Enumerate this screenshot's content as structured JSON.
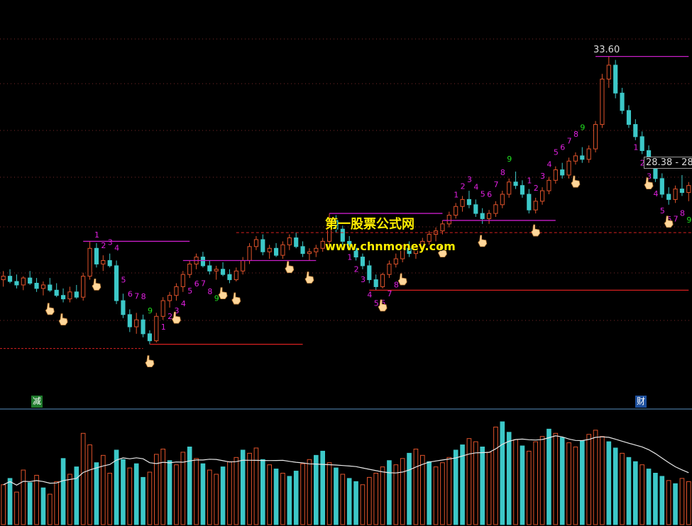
{
  "chart_data": {
    "type": "candlestick",
    "title": "",
    "xlabel": "",
    "ylabel": "",
    "price": {
      "max_label": "33.60",
      "range_label": "28.38 - 28",
      "ylim": [
        15.5,
        34.6
      ]
    },
    "candles": [
      [
        20.8,
        21.3,
        20.4,
        21.0
      ],
      [
        21.0,
        21.4,
        20.6,
        20.7
      ],
      [
        20.7,
        21.1,
        20.3,
        20.5
      ],
      [
        20.5,
        21.0,
        20.2,
        20.9
      ],
      [
        20.9,
        21.3,
        20.5,
        20.6
      ],
      [
        20.6,
        20.9,
        20.1,
        20.3
      ],
      [
        20.3,
        20.7,
        19.9,
        20.5
      ],
      [
        20.5,
        20.9,
        20.1,
        20.2
      ],
      [
        20.2,
        20.6,
        19.8,
        19.9
      ],
      [
        19.9,
        20.3,
        19.5,
        19.7
      ],
      [
        19.7,
        20.4,
        19.5,
        20.1
      ],
      [
        20.1,
        20.5,
        19.7,
        19.8
      ],
      [
        19.8,
        21.2,
        19.6,
        21.0
      ],
      [
        21.0,
        23.0,
        20.8,
        22.6
      ],
      [
        22.6,
        22.9,
        21.5,
        21.7
      ],
      [
        21.7,
        22.2,
        21.3,
        21.9
      ],
      [
        21.9,
        22.3,
        21.5,
        21.6
      ],
      [
        21.6,
        21.9,
        19.4,
        19.6
      ],
      [
        19.6,
        20.0,
        18.6,
        18.8
      ],
      [
        18.8,
        19.1,
        17.8,
        18.1
      ],
      [
        18.1,
        18.9,
        17.7,
        18.5
      ],
      [
        18.5,
        18.8,
        17.5,
        17.7
      ],
      [
        17.7,
        17.9,
        17.1,
        17.3
      ],
      [
        17.3,
        18.9,
        17.2,
        18.7
      ],
      [
        18.7,
        19.8,
        18.5,
        19.6
      ],
      [
        19.6,
        20.1,
        19.2,
        19.9
      ],
      [
        19.9,
        20.6,
        19.6,
        20.4
      ],
      [
        20.4,
        21.3,
        20.1,
        21.1
      ],
      [
        21.1,
        21.9,
        20.9,
        21.7
      ],
      [
        21.7,
        22.3,
        21.4,
        22.1
      ],
      [
        22.1,
        22.4,
        21.5,
        21.6
      ],
      [
        21.6,
        21.9,
        21.1,
        21.3
      ],
      [
        21.3,
        21.6,
        20.8,
        21.4
      ],
      [
        21.4,
        21.8,
        21.0,
        21.1
      ],
      [
        21.1,
        21.4,
        20.6,
        20.8
      ],
      [
        20.8,
        21.5,
        20.7,
        21.3
      ],
      [
        21.3,
        22.1,
        21.1,
        21.9
      ],
      [
        21.9,
        22.9,
        21.7,
        22.7
      ],
      [
        22.7,
        23.3,
        22.5,
        23.1
      ],
      [
        23.1,
        23.4,
        22.2,
        22.4
      ],
      [
        22.4,
        22.8,
        22.0,
        22.6
      ],
      [
        22.6,
        22.9,
        22.1,
        22.2
      ],
      [
        22.2,
        23.0,
        22.0,
        22.8
      ],
      [
        22.8,
        23.4,
        22.5,
        23.2
      ],
      [
        23.2,
        23.5,
        22.6,
        22.7
      ],
      [
        22.7,
        23.0,
        22.1,
        22.3
      ],
      [
        22.3,
        22.6,
        21.9,
        22.4
      ],
      [
        22.4,
        22.8,
        22.1,
        22.6
      ],
      [
        22.6,
        23.2,
        22.4,
        23.0
      ],
      [
        23.0,
        24.6,
        22.8,
        24.2
      ],
      [
        24.2,
        24.5,
        23.5,
        23.7
      ],
      [
        23.7,
        23.9,
        22.8,
        23.0
      ],
      [
        23.0,
        23.3,
        22.5,
        22.6
      ],
      [
        22.6,
        22.8,
        21.9,
        22.1
      ],
      [
        22.1,
        22.3,
        21.4,
        21.6
      ],
      [
        21.6,
        21.9,
        20.6,
        20.8
      ],
      [
        20.8,
        21.1,
        20.2,
        20.4
      ],
      [
        20.4,
        21.2,
        20.3,
        21.1
      ],
      [
        21.1,
        21.9,
        20.9,
        21.7
      ],
      [
        21.7,
        22.3,
        21.5,
        22.0
      ],
      [
        22.0,
        22.8,
        21.8,
        22.6
      ],
      [
        22.6,
        23.0,
        22.1,
        22.3
      ],
      [
        22.3,
        22.8,
        22.0,
        22.7
      ],
      [
        22.7,
        23.2,
        22.4,
        23.0
      ],
      [
        23.0,
        23.6,
        22.8,
        23.4
      ],
      [
        23.4,
        23.8,
        23.0,
        23.6
      ],
      [
        23.6,
        24.2,
        23.4,
        24.0
      ],
      [
        24.0,
        24.7,
        23.8,
        24.5
      ],
      [
        24.5,
        25.2,
        24.3,
        25.0
      ],
      [
        25.0,
        25.6,
        24.7,
        25.4
      ],
      [
        25.4,
        25.9,
        24.9,
        25.1
      ],
      [
        25.1,
        25.4,
        24.4,
        24.6
      ],
      [
        24.6,
        24.9,
        24.0,
        24.3
      ],
      [
        24.3,
        24.8,
        24.0,
        24.6
      ],
      [
        24.6,
        25.3,
        24.4,
        25.1
      ],
      [
        25.1,
        25.9,
        24.9,
        25.7
      ],
      [
        25.7,
        26.6,
        25.5,
        26.4
      ],
      [
        26.4,
        27.0,
        26.0,
        26.2
      ],
      [
        26.2,
        26.5,
        25.5,
        25.7
      ],
      [
        25.7,
        26.0,
        24.6,
        24.8
      ],
      [
        24.8,
        25.5,
        24.6,
        25.3
      ],
      [
        25.3,
        26.1,
        25.1,
        25.9
      ],
      [
        25.9,
        26.7,
        25.7,
        26.5
      ],
      [
        26.5,
        27.3,
        26.3,
        27.1
      ],
      [
        27.1,
        27.5,
        26.6,
        26.8
      ],
      [
        26.8,
        27.8,
        26.6,
        27.6
      ],
      [
        27.6,
        28.1,
        27.4,
        27.9
      ],
      [
        27.9,
        28.4,
        27.5,
        27.7
      ],
      [
        27.7,
        28.5,
        27.5,
        28.3
      ],
      [
        28.3,
        29.9,
        28.1,
        29.7
      ],
      [
        29.7,
        32.6,
        29.5,
        32.3
      ],
      [
        32.3,
        33.6,
        31.8,
        33.1
      ],
      [
        33.1,
        33.4,
        31.2,
        31.5
      ],
      [
        31.5,
        31.8,
        30.3,
        30.5
      ],
      [
        30.5,
        30.8,
        29.5,
        29.7
      ],
      [
        29.7,
        30.0,
        28.8,
        29.0
      ],
      [
        29.0,
        29.3,
        28.0,
        28.2
      ],
      [
        28.2,
        28.5,
        27.3,
        27.5
      ],
      [
        27.5,
        27.8,
        26.4,
        26.6
      ],
      [
        26.6,
        26.9,
        25.5,
        25.7
      ],
      [
        25.7,
        26.1,
        25.1,
        25.4
      ],
      [
        25.4,
        26.2,
        25.2,
        26.0
      ],
      [
        26.0,
        26.8,
        25.6,
        25.8
      ],
      [
        25.8,
        26.4,
        25.3,
        26.2
      ]
    ],
    "volume": {
      "values": [
        38,
        44,
        31,
        52,
        40,
        47,
        35,
        29,
        41,
        63,
        48,
        55,
        87,
        76,
        59,
        66,
        49,
        71,
        62,
        54,
        58,
        45,
        50,
        67,
        72,
        61,
        57,
        69,
        74,
        63,
        58,
        52,
        48,
        55,
        60,
        64,
        71,
        68,
        73,
        62,
        57,
        53,
        49,
        46,
        51,
        58,
        62,
        66,
        70,
        59,
        54,
        48,
        44,
        41,
        38,
        45,
        49,
        55,
        61,
        57,
        63,
        68,
        72,
        66,
        60,
        55,
        59,
        64,
        71,
        76,
        82,
        79,
        74,
        69,
        93,
        98,
        88,
        81,
        75,
        70,
        79,
        84,
        91,
        87,
        83,
        78,
        74,
        80,
        86,
        90,
        84,
        79,
        73,
        68,
        64,
        60,
        57,
        53,
        49,
        46,
        42,
        39,
        44,
        41
      ],
      "colors": [
        "up",
        "down",
        "up",
        "up",
        "down",
        "up",
        "down",
        "up",
        "up",
        "down",
        "up",
        "down",
        "up",
        "up",
        "down",
        "up",
        "up",
        "down",
        "down",
        "up",
        "down",
        "down",
        "up",
        "up",
        "up",
        "down",
        "up",
        "up",
        "down",
        "up",
        "down",
        "up",
        "up",
        "down",
        "up",
        "up",
        "down",
        "up",
        "up",
        "down",
        "up",
        "down",
        "up",
        "down",
        "down",
        "up",
        "up",
        "down",
        "down",
        "up",
        "down",
        "up",
        "down",
        "down",
        "up",
        "up",
        "up",
        "up",
        "down",
        "up",
        "up",
        "down",
        "up",
        "up",
        "down",
        "up",
        "up",
        "up",
        "down",
        "down",
        "up",
        "up",
        "down",
        "up",
        "up",
        "down",
        "down",
        "up",
        "down",
        "up",
        "up",
        "up",
        "down",
        "up",
        "down",
        "up",
        "up",
        "down",
        "up",
        "up",
        "up",
        "down",
        "down",
        "up",
        "down",
        "down",
        "up",
        "down",
        "down",
        "down",
        "up",
        "down",
        "up",
        "up"
      ]
    },
    "markers": {
      "setup_labels": [
        "1",
        "2",
        "3",
        "4",
        "5",
        "6",
        "7",
        "8",
        "9"
      ],
      "top_signal_pointer": "hand-pointer"
    }
  },
  "watermark": {
    "line1": "第一股票公式网",
    "line2": "www.chnmoney.com"
  },
  "badges": {
    "left": "减",
    "right": "财"
  },
  "colors": {
    "background": "#000000",
    "up": "#e0532b",
    "down": "#3cc8c8",
    "resistance": "#c81ec8",
    "support": "#d82020",
    "grid": "#7a2a2a",
    "count_magenta": "#e020e0",
    "count_green": "#20e020",
    "volume_ma": "#e8e8e8",
    "separator": "#3a6080"
  }
}
